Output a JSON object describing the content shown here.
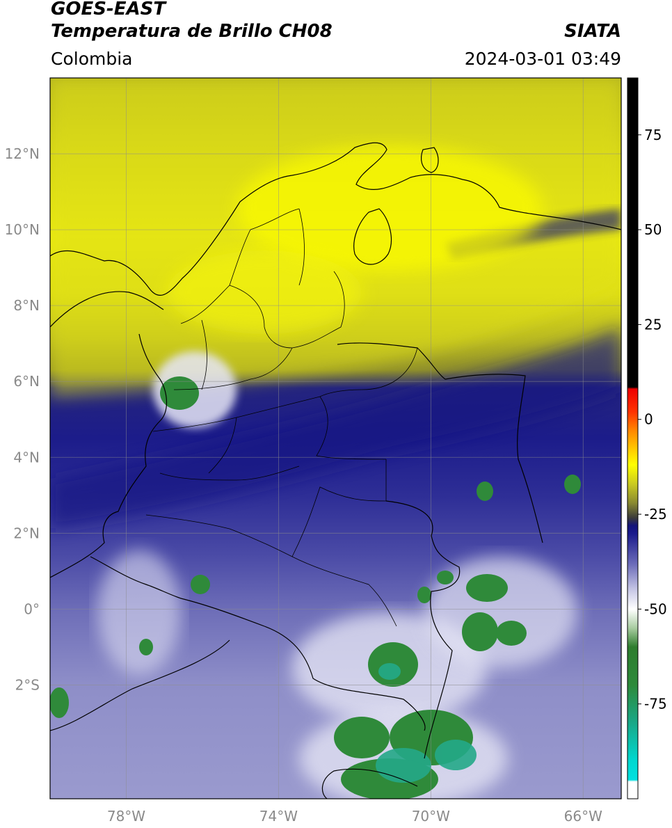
{
  "header": {
    "satellite": "GOES-EAST",
    "product": "Temperatura de Brillo CH08",
    "brand": "SIATA",
    "region": "Colombia",
    "timestamp": "2024-03-01 03:49"
  },
  "map": {
    "lon_range": [
      -80,
      -65
    ],
    "lat_range": [
      -5,
      14
    ],
    "lon_ticks": [
      {
        "value": -78,
        "label": "78°W"
      },
      {
        "value": -74,
        "label": "74°W"
      },
      {
        "value": -70,
        "label": "70°W"
      },
      {
        "value": -66,
        "label": "66°W"
      }
    ],
    "lat_ticks": [
      {
        "value": 12,
        "label": "12°N"
      },
      {
        "value": 10,
        "label": "10°N"
      },
      {
        "value": 8,
        "label": "8°N"
      },
      {
        "value": 6,
        "label": "6°N"
      },
      {
        "value": 4,
        "label": "4°N"
      },
      {
        "value": 2,
        "label": "2°N"
      },
      {
        "value": 0,
        "label": "0°"
      },
      {
        "value": -2,
        "label": "2°S"
      }
    ],
    "grid": true
  },
  "colorbar": {
    "range": [
      -100,
      90
    ],
    "ticks": [
      {
        "value": 75,
        "label": "75"
      },
      {
        "value": 50,
        "label": "50"
      },
      {
        "value": 25,
        "label": "25"
      },
      {
        "value": 0,
        "label": "0"
      },
      {
        "value": -25,
        "label": "-25"
      },
      {
        "value": -50,
        "label": "-50"
      },
      {
        "value": -75,
        "label": "-75"
      }
    ],
    "stops": [
      {
        "value": -100,
        "color": "#ffffff"
      },
      {
        "value": -95.5,
        "color": "#ffffff"
      },
      {
        "value": -95,
        "color": "#00e0e0"
      },
      {
        "value": -90,
        "color": "#00d8d0"
      },
      {
        "value": -80,
        "color": "#1aa888"
      },
      {
        "value": -70,
        "color": "#2e8a3a"
      },
      {
        "value": -60,
        "color": "#2e7d2e"
      },
      {
        "value": -55,
        "color": "#a8cca0"
      },
      {
        "value": -50,
        "color": "#ffffff"
      },
      {
        "value": -45,
        "color": "#c8c8e6"
      },
      {
        "value": -38,
        "color": "#6a6ab8"
      },
      {
        "value": -30,
        "color": "#1a1a8c"
      },
      {
        "value": -28,
        "color": "#14147a"
      },
      {
        "value": -26,
        "color": "#3a3a3a"
      },
      {
        "value": -22,
        "color": "#8a8a30"
      },
      {
        "value": -17,
        "color": "#caca20"
      },
      {
        "value": -12,
        "color": "#ffff00"
      },
      {
        "value": -8,
        "color": "#ffcc00"
      },
      {
        "value": -3,
        "color": "#ff8800"
      },
      {
        "value": 2,
        "color": "#ff3300"
      },
      {
        "value": 8,
        "color": "#ee0000"
      },
      {
        "value": 8.5,
        "color": "#000000"
      },
      {
        "value": 90,
        "color": "#000000"
      }
    ]
  }
}
